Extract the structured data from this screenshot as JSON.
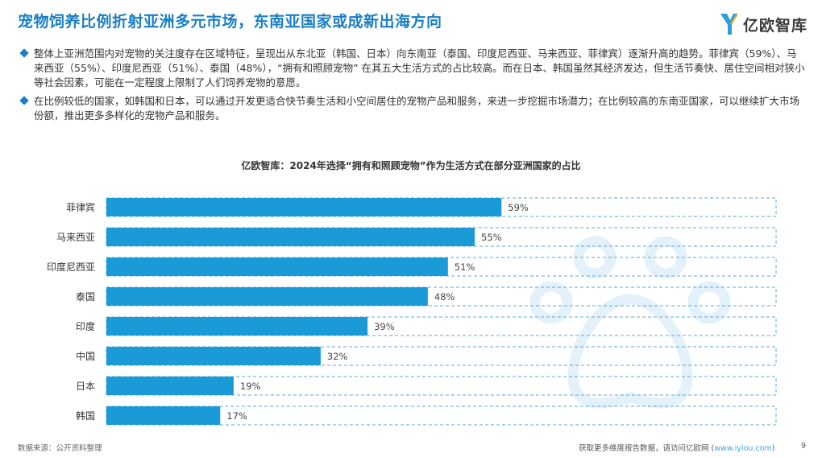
{
  "header": {
    "title": "宠物饲养比例折射亚洲多元市场，东南亚国家或成新出海方向",
    "logo_text": "亿欧智库"
  },
  "bullets": [
    "整体上亚洲范围内对宠物的关注度存在区域特征，呈现出从东北亚（韩国、日本）向东南亚（泰国、印度尼西亚、马来西亚、菲律宾）逐渐升高的趋势。菲律宾（59%）、马来西亚（55%）、印度尼西亚（51%）、泰国（48%），“拥有和照顾宠物” 在其五大生活方式的占比较高。而在日本、韩国虽然其经济发达，但生活节奏快、居住空间相对狭小等社会因素，可能在一定程度上限制了人们饲养宠物的意愿。",
    "在比例较低的国家，如韩国和日本，可以通过开发更适合快节奏生活和小空间居住的宠物产品和服务，来进一步挖掘市场潜力；在比例较高的东南亚国家，可以继续扩大市场份额，推出更多多样化的宠物产品和服务。"
  ],
  "chart_data": {
    "type": "bar",
    "orientation": "horizontal",
    "title": "亿欧智库：2024年选择“拥有和照顾宠物”作为生活方式在部分亚洲国家的占比",
    "categories": [
      "菲律宾",
      "马来西亚",
      "印度尼西亚",
      "泰国",
      "印度",
      "中国",
      "日本",
      "韩国"
    ],
    "values": [
      59,
      55,
      51,
      48,
      39,
      32,
      19,
      17
    ],
    "value_labels": [
      "59%",
      "55%",
      "51%",
      "48%",
      "39%",
      "32%",
      "19%",
      "17%"
    ],
    "xlim": [
      0,
      100
    ],
    "bar_color": "#1a9ad6",
    "track_border_color": "#5aa8d8",
    "watermark_color": "#e3f1fa"
  },
  "footer": {
    "source": "数据来源：公开资料整理",
    "cta_text": "获取更多维度报告数据，请访问亿欧网 (",
    "cta_link": "www.iyiou.com",
    "cta_close": ")",
    "page_number": "9"
  }
}
